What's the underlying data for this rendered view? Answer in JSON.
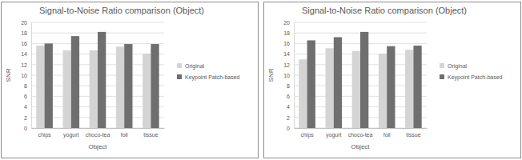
{
  "chart_data": [
    {
      "type": "bar",
      "title": "Signal-to-Noise Ratio comparison (Object)",
      "xlabel": "Object",
      "ylabel": "SNR",
      "categories": [
        "chips",
        "yogurt",
        "choco-tea",
        "foil",
        "tissue"
      ],
      "series": [
        {
          "name": "Original",
          "color": "#d4d4d4",
          "values": [
            15.6,
            14.7,
            14.7,
            15.4,
            14.1
          ]
        },
        {
          "name": "Keypoint Patch-based",
          "color": "#6f6f6f",
          "values": [
            16.0,
            17.4,
            18.2,
            15.9,
            15.9
          ]
        }
      ],
      "ylim": [
        0,
        20
      ],
      "yticks": [
        0,
        2,
        4,
        6,
        8,
        10,
        12,
        14,
        16,
        18,
        20
      ],
      "grid": true,
      "legend": "right"
    },
    {
      "type": "bar",
      "title": "Signal-to-Noise Ratio comparison (Object)",
      "xlabel": "Object",
      "ylabel": "SNR",
      "categories": [
        "chips",
        "yogurt",
        "choco-tea",
        "foil",
        "tissue"
      ],
      "series": [
        {
          "name": "Original",
          "color": "#d4d4d4",
          "values": [
            13.0,
            15.1,
            14.6,
            14.1,
            14.8
          ]
        },
        {
          "name": "Keypoint Patch-based",
          "color": "#6f6f6f",
          "values": [
            16.6,
            17.2,
            18.2,
            15.5,
            15.6
          ]
        }
      ],
      "ylim": [
        0,
        20
      ],
      "yticks": [
        0,
        2,
        4,
        6,
        8,
        10,
        12,
        14,
        16,
        18,
        20
      ],
      "grid": true,
      "legend": "right"
    }
  ]
}
